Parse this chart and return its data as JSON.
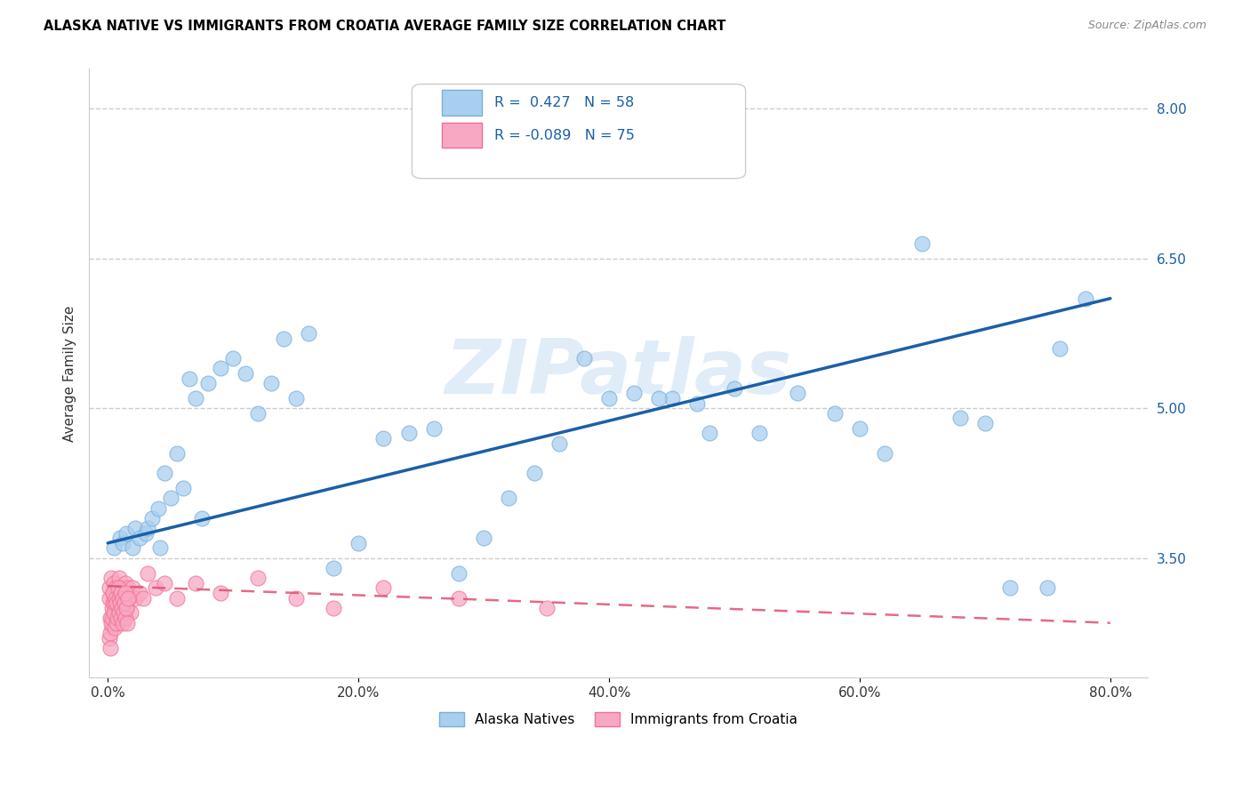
{
  "title": "ALASKA NATIVE VS IMMIGRANTS FROM CROATIA AVERAGE FAMILY SIZE CORRELATION CHART",
  "source": "Source: ZipAtlas.com",
  "ylabel": "Average Family Size",
  "xlabel_ticks": [
    "0.0%",
    "20.0%",
    "40.0%",
    "60.0%",
    "80.0%"
  ],
  "xlabel_vals": [
    0,
    20,
    40,
    60,
    80
  ],
  "yticks": [
    3.5,
    5.0,
    6.5,
    8.0
  ],
  "ymin": 2.3,
  "ymax": 8.4,
  "xmin": -1.5,
  "xmax": 83,
  "blue_R": "0.427",
  "blue_N": "58",
  "pink_R": "-0.089",
  "pink_N": "75",
  "blue_color": "#a8cff0",
  "pink_color": "#f9a8c4",
  "blue_edge_color": "#7aaed8",
  "pink_edge_color": "#f07090",
  "blue_line_color": "#1a5fa8",
  "pink_line_color": "#e05070",
  "watermark_color": "#c8dff5",
  "watermark": "ZIPatlas",
  "legend_label_blue": "Alaska Natives",
  "legend_label_pink": "Immigrants from Croatia",
  "blue_scatter_x": [
    0.5,
    1.0,
    1.2,
    1.5,
    2.0,
    2.2,
    2.5,
    3.0,
    3.2,
    3.5,
    4.0,
    4.2,
    4.5,
    5.0,
    5.5,
    6.0,
    6.5,
    7.0,
    7.5,
    8.0,
    9.0,
    10.0,
    11.0,
    12.0,
    13.0,
    14.0,
    15.0,
    16.0,
    18.0,
    20.0,
    22.0,
    24.0,
    26.0,
    28.0,
    30.0,
    32.0,
    34.0,
    38.0,
    42.0,
    45.0,
    48.0,
    55.0,
    60.0,
    65.0,
    70.0,
    75.0,
    78.0,
    40.0,
    36.0,
    50.0,
    52.0,
    58.0,
    62.0,
    68.0,
    72.0,
    76.0,
    44.0,
    47.0
  ],
  "blue_scatter_y": [
    3.6,
    3.7,
    3.65,
    3.75,
    3.6,
    3.8,
    3.7,
    3.75,
    3.8,
    3.9,
    4.0,
    3.6,
    4.35,
    4.1,
    4.55,
    4.2,
    5.3,
    5.1,
    3.9,
    5.25,
    5.4,
    5.5,
    5.35,
    4.95,
    5.25,
    5.7,
    5.1,
    5.75,
    3.4,
    3.65,
    4.7,
    4.75,
    4.8,
    3.35,
    3.7,
    4.1,
    4.35,
    5.5,
    5.15,
    5.1,
    4.75,
    5.15,
    4.8,
    6.65,
    4.85,
    3.2,
    6.1,
    5.1,
    4.65,
    5.2,
    4.75,
    4.95,
    4.55,
    4.9,
    3.2,
    5.6,
    5.1,
    5.05
  ],
  "pink_scatter_x": [
    0.1,
    0.15,
    0.2,
    0.25,
    0.3,
    0.35,
    0.4,
    0.45,
    0.5,
    0.55,
    0.6,
    0.65,
    0.7,
    0.75,
    0.8,
    0.85,
    0.9,
    0.95,
    1.0,
    1.05,
    1.1,
    1.15,
    1.2,
    1.3,
    1.4,
    1.5,
    1.6,
    1.7,
    1.8,
    2.0,
    2.2,
    2.5,
    2.8,
    3.2,
    3.8,
    4.5,
    5.5,
    7.0,
    9.0,
    12.0,
    15.0,
    18.0,
    22.0,
    28.0,
    35.0,
    0.12,
    0.18,
    0.22,
    0.28,
    0.32,
    0.38,
    0.42,
    0.48,
    0.52,
    0.58,
    0.62,
    0.68,
    0.72,
    0.78,
    0.82,
    0.88,
    0.92,
    0.98,
    1.02,
    1.08,
    1.12,
    1.18,
    1.22,
    1.28,
    1.32,
    1.38,
    1.42,
    1.48,
    1.52,
    1.58
  ],
  "pink_scatter_y": [
    3.2,
    3.1,
    2.9,
    3.3,
    3.0,
    2.8,
    3.15,
    3.05,
    3.25,
    2.95,
    3.1,
    3.2,
    3.0,
    2.85,
    3.15,
    3.05,
    3.3,
    2.9,
    3.1,
    3.2,
    3.05,
    2.95,
    3.15,
    3.1,
    3.25,
    3.0,
    3.2,
    3.1,
    2.95,
    3.2,
    3.1,
    3.15,
    3.1,
    3.35,
    3.2,
    3.25,
    3.1,
    3.25,
    3.15,
    3.3,
    3.1,
    3.0,
    3.2,
    3.1,
    3.0,
    2.7,
    2.6,
    2.75,
    2.85,
    2.9,
    3.05,
    3.15,
    2.95,
    3.05,
    2.8,
    3.1,
    2.85,
    3.05,
    2.9,
    3.2,
    2.95,
    3.1,
    3.05,
    2.9,
    3.15,
    3.0,
    2.85,
    3.1,
    2.95,
    3.05,
    2.9,
    3.15,
    3.0,
    2.85,
    3.1
  ],
  "blue_line_x0": 0,
  "blue_line_y0": 3.65,
  "blue_line_x1": 80,
  "blue_line_y1": 6.1,
  "pink_line_x0": 0,
  "pink_line_y0": 3.22,
  "pink_line_x1": 80,
  "pink_line_y1": 2.85
}
